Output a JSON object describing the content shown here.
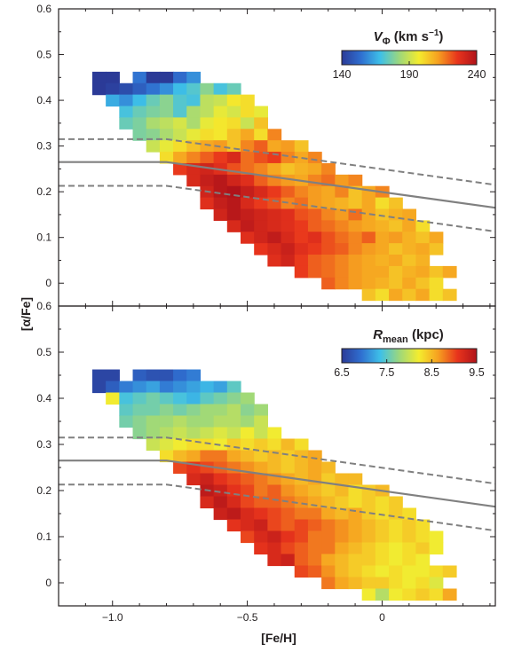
{
  "chart_data": [
    {
      "type": "heatmap",
      "panel": "top",
      "colorbar": {
        "symbol": "V",
        "subscript": "Φ",
        "units_open": " (km s",
        "units_sup": "−1",
        "units_close": ")",
        "ticks": [
          "140",
          "190",
          "240"
        ],
        "range": [
          140,
          240
        ]
      },
      "ylabel": "[α/Fe]",
      "y_ticks": [
        "0",
        "0.1",
        "0.2",
        "0.3",
        "0.4",
        "0.5",
        "0.6"
      ],
      "ylim": [
        -0.05,
        0.6
      ],
      "xlim": [
        -1.2,
        0.42
      ],
      "grid": false,
      "bin_size": {
        "fe_h": 0.05,
        "alpha_fe": 0.025
      },
      "x_bins": [
        -1.05,
        -1.0,
        -0.95,
        -0.9,
        -0.85,
        -0.8,
        -0.75,
        -0.7,
        -0.65,
        -0.6,
        -0.55,
        -0.5,
        -0.45,
        -0.4,
        -0.35,
        -0.3,
        -0.25,
        -0.2,
        -0.15,
        -0.1,
        -0.05,
        0.0,
        0.05,
        0.1,
        0.15,
        0.2,
        0.25
      ],
      "y_bins": [
        0.45,
        0.425,
        0.4,
        0.375,
        0.35,
        0.325,
        0.3,
        0.275,
        0.25,
        0.225,
        0.2,
        0.175,
        0.15,
        0.125,
        0.1,
        0.075,
        0.05,
        0.025,
        0.0,
        -0.025
      ],
      "x_bin_start": [
        -1.05,
        -1.05,
        -1.0,
        -0.95,
        -0.95,
        -0.9,
        -0.85,
        -0.8,
        -0.75,
        -0.7,
        -0.65,
        -0.65,
        -0.6,
        -0.55,
        -0.5,
        -0.45,
        -0.4,
        -0.3,
        -0.2,
        -0.05
      ],
      "values": [
        [
          140,
          140,
          null,
          155,
          140,
          140,
          153,
          160
        ],
        [
          140,
          142,
          145,
          150,
          155,
          160,
          168,
          172,
          180,
          170,
          175
        ],
        [
          165,
          160,
          168,
          175,
          180,
          172,
          170,
          188,
          190,
          198,
          200
        ],
        [
          170,
          175,
          178,
          180,
          172,
          185,
          188,
          195,
          192,
          200,
          195
        ],
        [
          175,
          178,
          185,
          188,
          192,
          185,
          195,
          198,
          200,
          190,
          205
        ],
        [
          178,
          180,
          185,
          190,
          195,
          200,
          198,
          205,
          210,
          200,
          215
        ],
        [
          190,
          195,
          200,
          205,
          210,
          212,
          205,
          215,
          220,
          210,
          212,
          205
        ],
        [
          200,
          210,
          215,
          220,
          225,
          230,
          218,
          222,
          225,
          215,
          210,
          215
        ],
        [
          225,
          230,
          232,
          228,
          222,
          218,
          215,
          210,
          205,
          208,
          210,
          215
        ],
        [
          230,
          235,
          238,
          232,
          228,
          220,
          215,
          212,
          210,
          215,
          218,
          212,
          215
        ],
        [
          232,
          238,
          240,
          235,
          230,
          225,
          220,
          215,
          212,
          210,
          215,
          205,
          210,
          215
        ],
        [
          228,
          235,
          238,
          230,
          225,
          222,
          215,
          218,
          212,
          210,
          208,
          205,
          210,
          200,
          205
        ],
        [
          232,
          238,
          235,
          232,
          230,
          228,
          222,
          220,
          215,
          212,
          218,
          210,
          205,
          208,
          210
        ],
        [
          230,
          236,
          232,
          230,
          228,
          225,
          220,
          218,
          215,
          212,
          210,
          208,
          205,
          210,
          200
        ],
        [
          228,
          232,
          236,
          230,
          225,
          228,
          222,
          218,
          215,
          220,
          210,
          212,
          208,
          205,
          210
        ],
        [
          226,
          230,
          234,
          228,
          225,
          222,
          220,
          215,
          212,
          210,
          205,
          208,
          210,
          205
        ],
        [
          228,
          232,
          225,
          220,
          218,
          215,
          212,
          210,
          208,
          210,
          205,
          208
        ],
        [
          225,
          220,
          218,
          215,
          212,
          210,
          210,
          205,
          208,
          210,
          205,
          210
        ],
        [
          220,
          215,
          212,
          210,
          208,
          205,
          210,
          205,
          200
        ],
        [
          205,
          200,
          210,
          205,
          210,
          200,
          205
        ]
      ],
      "lines": {
        "solid": [
          [
            -1.2,
            0.265
          ],
          [
            -0.8,
            0.265
          ],
          [
            0.42,
            0.165
          ]
        ],
        "dashed": [
          [
            [
              -1.2,
              0.315
            ],
            [
              -0.8,
              0.315
            ],
            [
              0.42,
              0.215
            ]
          ],
          [
            [
              -1.2,
              0.213
            ],
            [
              -0.8,
              0.213
            ],
            [
              0.42,
              0.113
            ]
          ]
        ]
      }
    },
    {
      "type": "heatmap",
      "panel": "bottom",
      "colorbar": {
        "symbol": "R",
        "subscript": "mean",
        "units_open": " (kpc)",
        "units_sup": "",
        "units_close": "",
        "ticks": [
          "6.5",
          "7.5",
          "8.5",
          "9.5"
        ],
        "range": [
          6.5,
          9.5
        ]
      },
      "ylabel": "[α/Fe]",
      "xlabel": "[Fe/H]",
      "y_ticks": [
        "0",
        "0.1",
        "0.2",
        "0.3",
        "0.4",
        "0.5",
        "0.6"
      ],
      "x_ticks": [
        "−1.0",
        "−0.5",
        "0"
      ],
      "x_tick_values": [
        -1.0,
        -0.5,
        0.0
      ],
      "ylim": [
        -0.05,
        0.6
      ],
      "xlim": [
        -1.2,
        0.42
      ],
      "grid": false,
      "bin_size": {
        "fe_h": 0.05,
        "alpha_fe": 0.025
      },
      "x_bins": [
        -1.05,
        -1.0,
        -0.95,
        -0.9,
        -0.85,
        -0.8,
        -0.75,
        -0.7,
        -0.65,
        -0.6,
        -0.55,
        -0.5,
        -0.45,
        -0.4,
        -0.35,
        -0.3,
        -0.25,
        -0.2,
        -0.15,
        -0.1,
        -0.05,
        0.0,
        0.05,
        0.1,
        0.15,
        0.2,
        0.25
      ],
      "y_bins": [
        0.45,
        0.425,
        0.4,
        0.375,
        0.35,
        0.325,
        0.3,
        0.275,
        0.25,
        0.225,
        0.2,
        0.175,
        0.15,
        0.125,
        0.1,
        0.075,
        0.05,
        0.025,
        0.0,
        -0.025
      ],
      "x_bin_start": [
        -1.05,
        -1.05,
        -1.0,
        -0.95,
        -0.95,
        -0.9,
        -0.85,
        -0.8,
        -0.75,
        -0.7,
        -0.65,
        -0.65,
        -0.6,
        -0.55,
        -0.5,
        -0.45,
        -0.4,
        -0.3,
        -0.2,
        -0.05
      ],
      "values": [
        [
          6.6,
          6.6,
          null,
          6.8,
          6.7,
          6.7,
          6.9,
          7.0
        ],
        [
          6.6,
          6.8,
          7.0,
          7.1,
          7.2,
          7.0,
          7.1,
          7.2,
          7.3,
          7.2,
          7.5
        ],
        [
          8.2,
          7.4,
          7.5,
          7.6,
          7.5,
          7.4,
          7.3,
          7.5,
          7.6,
          7.7,
          7.8
        ],
        [
          7.5,
          7.6,
          7.6,
          7.7,
          7.6,
          7.7,
          7.8,
          7.8,
          7.9,
          7.7,
          7.8
        ],
        [
          7.6,
          7.7,
          7.8,
          7.8,
          7.9,
          7.8,
          7.8,
          7.9,
          7.9,
          7.8,
          8.0
        ],
        [
          7.7,
          7.8,
          7.9,
          8.0,
          7.9,
          8.0,
          8.1,
          8.0,
          8.2,
          8.0,
          8.2
        ],
        [
          8.0,
          8.1,
          8.2,
          8.3,
          8.3,
          8.2,
          8.4,
          8.3,
          8.4,
          8.3,
          8.5,
          8.3
        ],
        [
          8.3,
          8.5,
          8.6,
          8.8,
          8.8,
          8.6,
          8.5,
          8.4,
          8.5,
          8.4,
          8.5,
          8.6
        ],
        [
          9.0,
          9.1,
          9.0,
          8.9,
          8.8,
          8.7,
          8.6,
          8.5,
          8.4,
          8.5,
          8.6,
          8.5
        ],
        [
          9.2,
          9.3,
          9.1,
          9.0,
          8.9,
          8.8,
          8.7,
          8.6,
          8.5,
          8.6,
          8.4,
          8.5,
          8.5
        ],
        [
          9.4,
          9.3,
          9.1,
          9.0,
          8.8,
          8.9,
          8.7,
          8.6,
          8.5,
          8.4,
          8.5,
          8.3,
          8.4,
          8.5
        ],
        [
          9.2,
          9.4,
          9.2,
          9.0,
          8.9,
          8.9,
          8.8,
          8.7,
          8.6,
          8.5,
          8.4,
          8.3,
          8.4,
          8.3,
          8.4
        ],
        [
          9.3,
          9.4,
          9.2,
          9.1,
          9.0,
          8.9,
          8.8,
          8.8,
          8.6,
          8.5,
          8.6,
          8.4,
          8.3,
          8.4,
          8.3
        ],
        [
          9.1,
          9.2,
          9.3,
          9.0,
          8.9,
          9.0,
          8.9,
          8.8,
          8.7,
          8.6,
          8.5,
          8.4,
          8.3,
          8.4,
          8.3
        ],
        [
          9.0,
          9.2,
          9.3,
          9.1,
          9.0,
          8.8,
          8.8,
          8.7,
          8.6,
          8.5,
          8.4,
          8.3,
          8.4,
          8.3,
          8.2
        ],
        [
          9.1,
          9.2,
          9.0,
          8.9,
          8.8,
          8.8,
          8.6,
          8.5,
          8.4,
          8.3,
          8.2,
          8.3,
          8.4,
          8.2
        ],
        [
          9.2,
          9.3,
          8.9,
          8.8,
          8.6,
          8.5,
          8.4,
          8.4,
          8.3,
          8.2,
          8.3,
          8.2
        ],
        [
          9.0,
          8.9,
          8.7,
          8.5,
          8.4,
          8.3,
          8.2,
          8.3,
          8.2,
          8.2,
          8.3,
          8.4
        ],
        [
          8.8,
          8.6,
          8.5,
          8.4,
          8.4,
          8.3,
          8.2,
          8.3,
          8.1
        ],
        [
          8.2,
          7.9,
          8.2,
          8.3,
          8.4,
          8.3,
          8.6
        ]
      ],
      "lines": {
        "solid": [
          [
            -1.2,
            0.265
          ],
          [
            -0.8,
            0.265
          ],
          [
            0.42,
            0.165
          ]
        ],
        "dashed": [
          [
            [
              -1.2,
              0.315
            ],
            [
              -0.8,
              0.315
            ],
            [
              0.42,
              0.215
            ]
          ],
          [
            [
              -1.2,
              0.213
            ],
            [
              -0.8,
              0.213
            ],
            [
              0.42,
              0.113
            ]
          ]
        ]
      }
    }
  ],
  "colors": {
    "colormap": [
      "#2b3a97",
      "#2f6fd0",
      "#3ec0e8",
      "#9ed87a",
      "#f4ec2e",
      "#f6a020",
      "#e8341c",
      "#b0131a"
    ],
    "line": "#808080",
    "frame": "#231f20"
  }
}
